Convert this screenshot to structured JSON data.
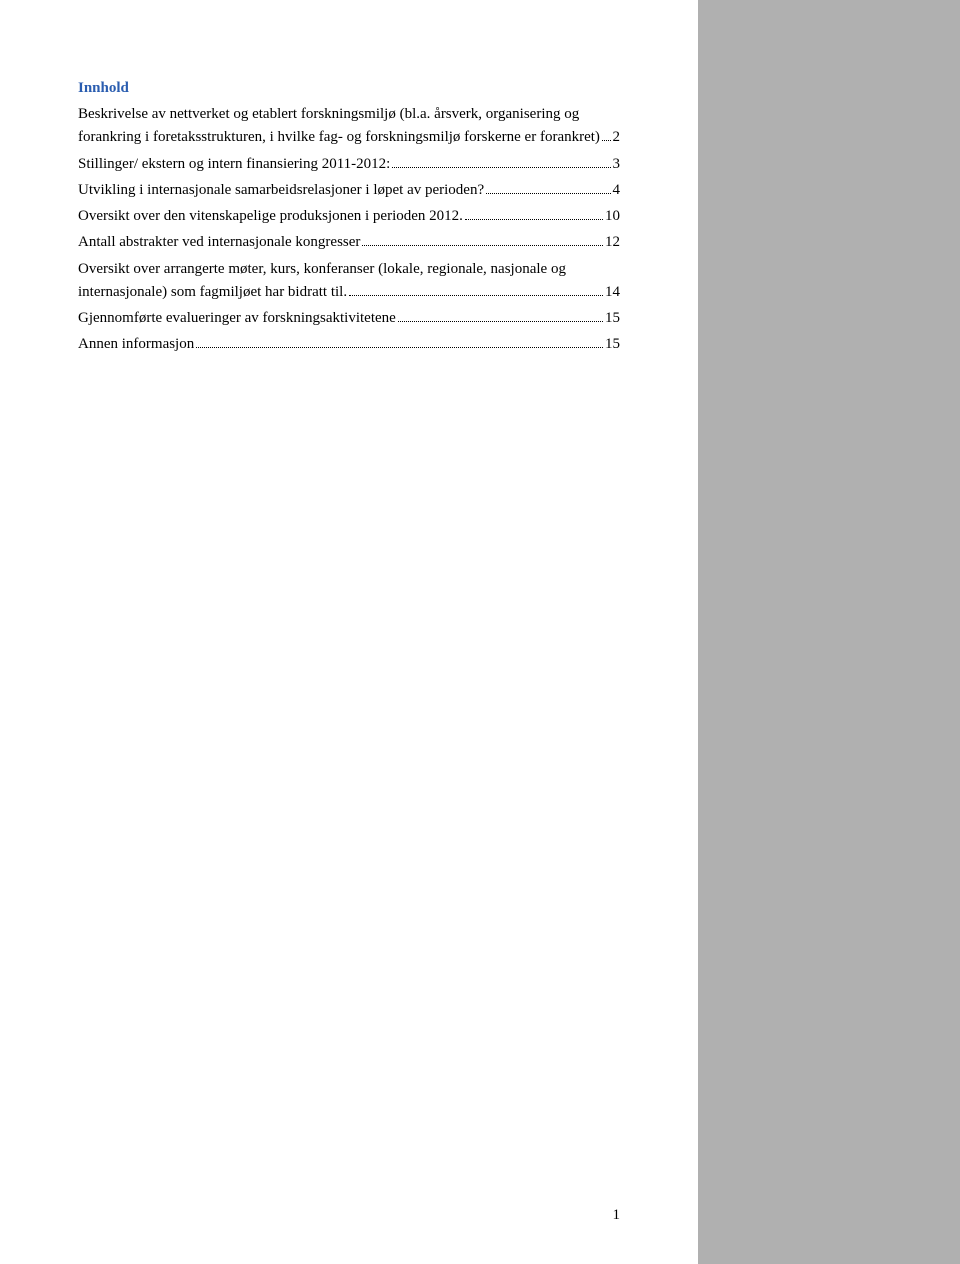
{
  "heading": "Innhold",
  "toc": {
    "entries": [
      {
        "text": "Beskrivelse av nettverket og etablert forskningsmiljø (bl.a. årsverk, organisering og",
        "text2": "forankring i foretaksstrukturen, i hvilke fag- og forskningsmiljø forskerne er forankret)",
        "page": "2",
        "multiline": true
      },
      {
        "text": "Stillinger/ ekstern og intern finansiering 2011-2012:",
        "page": "3",
        "multiline": false
      },
      {
        "text": "Utvikling i internasjonale samarbeidsrelasjoner i løpet av perioden?",
        "page": "4",
        "multiline": false
      },
      {
        "text": "Oversikt over den vitenskapelige produksjonen i perioden 2012.",
        "page": "10",
        "multiline": false
      },
      {
        "text": "Antall abstrakter ved internasjonale kongresser",
        "page": "12",
        "multiline": false
      },
      {
        "text": "Oversikt over arrangerte møter, kurs, konferanser (lokale, regionale, nasjonale og",
        "text2": "internasjonale) som fagmiljøet har bidratt til.",
        "page": "14",
        "multiline": true
      },
      {
        "text": "Gjennomførte evalueringer av forskningsaktivitetene",
        "page": "15",
        "multiline": false
      },
      {
        "text": "Annen informasjon",
        "page": "15",
        "multiline": false
      }
    ]
  },
  "pageNumber": "1",
  "colors": {
    "headingColor": "#2a5db0",
    "textColor": "#000000",
    "pageBg": "#ffffff",
    "sidebarBg": "#b0b0b0"
  },
  "typography": {
    "fontFamily": "Times New Roman",
    "bodyFontSize": 15,
    "headingFontSize": 15,
    "headingWeight": "bold"
  },
  "layout": {
    "pageWidth": 698,
    "totalWidth": 960,
    "totalHeight": 1264
  }
}
